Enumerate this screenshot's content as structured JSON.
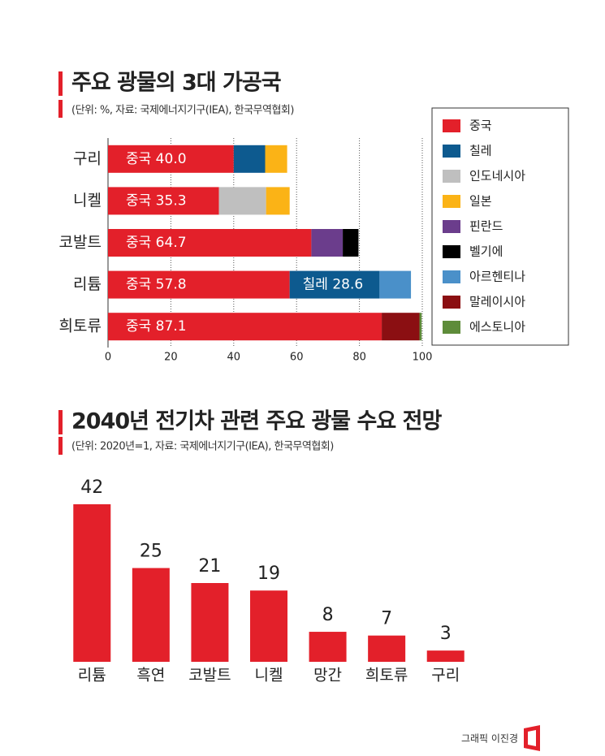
{
  "chart_data": [
    {
      "type": "bar",
      "horizontal": true,
      "stacked": true,
      "title": "주요 광물의 3대 가공국",
      "subtitle": "(단위: %, 자료: 국제에너지기구(IEA), 한국무역협회)",
      "categories": [
        "구리",
        "니켈",
        "코발트",
        "리튬",
        "희토류"
      ],
      "xlim": [
        0,
        100
      ],
      "xticks": [
        0,
        20,
        40,
        60,
        80,
        100
      ],
      "grid": true,
      "legend": "right",
      "series": [
        {
          "name": "중국",
          "color": "#e3202a",
          "values": [
            40.0,
            35.3,
            64.7,
            57.8,
            87.1
          ],
          "value_labels": [
            "중국 40.0",
            "중국 35.3",
            "중국 64.7",
            "중국 57.8",
            "중국 87.1"
          ]
        },
        {
          "name": "칠레",
          "color": "#0d5a8f",
          "values": [
            10,
            null,
            null,
            28.6,
            null
          ],
          "value_labels": [
            null,
            null,
            null,
            "칠레 28.6",
            null
          ]
        },
        {
          "name": "인도네시아",
          "color": "#bfbfbf",
          "values": [
            null,
            15,
            null,
            null,
            null
          ]
        },
        {
          "name": "일본",
          "color": "#fbb316",
          "values": [
            7,
            7.5,
            null,
            null,
            null
          ]
        },
        {
          "name": "핀란드",
          "color": "#6b3d8c",
          "values": [
            null,
            null,
            10,
            null,
            null
          ]
        },
        {
          "name": "벨기에",
          "color": "#000000",
          "values": [
            null,
            null,
            5,
            null,
            null
          ]
        },
        {
          "name": "아르헨티나",
          "color": "#4a90c9",
          "values": [
            null,
            null,
            null,
            10,
            null
          ]
        },
        {
          "name": "말레이시아",
          "color": "#8b0f12",
          "values": [
            null,
            null,
            null,
            null,
            12
          ]
        },
        {
          "name": "에스토니아",
          "color": "#5e8c3a",
          "values": [
            null,
            null,
            null,
            null,
            0.7
          ]
        }
      ]
    },
    {
      "type": "bar",
      "title": "2040년 전기차 관련 주요 광물 수요 전망",
      "subtitle": "(단위: 2020년=1, 자료: 국제에너지기구(IEA), 한국무역협회)",
      "categories": [
        "리튬",
        "흑연",
        "코발트",
        "니켈",
        "망간",
        "희토류",
        "구리"
      ],
      "values": [
        42,
        25,
        21,
        19,
        8,
        7,
        3
      ],
      "color": "#e3202a"
    }
  ],
  "credit": "그래픽 이진경"
}
